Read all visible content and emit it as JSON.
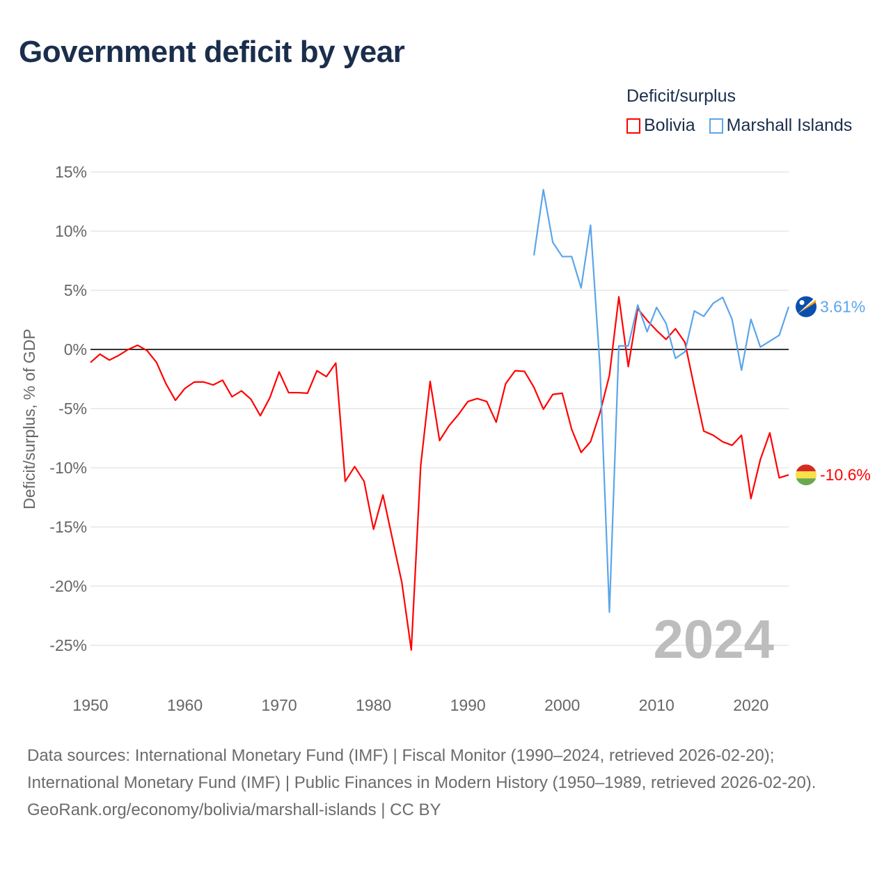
{
  "title": "Government deficit by year",
  "legend": {
    "title": "Deficit/surplus",
    "items": [
      {
        "label": "Bolivia",
        "color": "#ff0000"
      },
      {
        "label": "Marshall Islands",
        "color": "#5aa5ea"
      }
    ]
  },
  "year_watermark": "2024",
  "end_labels": {
    "bolivia": "-10.6%",
    "marshall": "3.61%"
  },
  "footer": {
    "sources": "Data sources: International Monetary Fund (IMF) | Fiscal Monitor (1990–2024, retrieved 2026-02-20); International Monetary Fund (IMF) | Public Finances in Modern History (1950–1989, retrieved 2026-02-20).",
    "credit": "GeoRank.org/economy/bolivia/marshall-islands | CC BY"
  },
  "chart_data": {
    "type": "line",
    "title": "Government deficit by year",
    "xlabel": "",
    "ylabel": "Deficit/surplus, % of GDP",
    "xlim": [
      1950,
      2024
    ],
    "ylim": [
      -25,
      15
    ],
    "x_ticks": [
      "1950",
      "1960",
      "1970",
      "1980",
      "1990",
      "2000",
      "2010",
      "2020"
    ],
    "y_ticks": [
      "15%",
      "10%",
      "5%",
      "0%",
      "-5%",
      "-10%",
      "-15%",
      "-20%",
      "-25%"
    ],
    "legend_position": "top-right",
    "grid": true,
    "series": [
      {
        "name": "Bolivia",
        "color": "#ff0000",
        "start_year": 1950,
        "values": [
          -1.1,
          -0.4,
          -0.9,
          -0.5,
          0.0,
          0.35,
          -0.1,
          -1.1,
          -2.9,
          -4.3,
          -3.3,
          -2.75,
          -2.75,
          -3.0,
          -2.6,
          -4.0,
          -3.5,
          -4.2,
          -5.6,
          -4.1,
          -1.9,
          -3.65,
          -3.65,
          -3.7,
          -1.8,
          -2.3,
          -1.15,
          -11.15,
          -9.9,
          -11.15,
          -15.2,
          -12.3,
          -16.0,
          -19.7,
          -25.4,
          -9.8,
          -2.7,
          -7.7,
          -6.45,
          -5.5,
          -4.4,
          -4.15,
          -4.4,
          -6.15,
          -2.9,
          -1.8,
          -1.85,
          -3.2,
          -5.05,
          -3.8,
          -3.7,
          -6.75,
          -8.7,
          -7.8,
          -5.35,
          -2.2,
          4.45,
          -1.45,
          3.45,
          2.45,
          1.6,
          0.85,
          1.75,
          0.6,
          -3.2,
          -6.9,
          -7.25,
          -7.8,
          -8.1,
          -7.25,
          -12.6,
          -9.3,
          -7.05,
          -10.85,
          -10.6
        ]
      },
      {
        "name": "Marshall Islands",
        "color": "#5aa5ea",
        "start_year": 1997,
        "values": [
          7.95,
          13.5,
          9.05,
          7.85,
          7.85,
          5.2,
          10.5,
          -1.5,
          -22.2,
          0.3,
          0.3,
          3.75,
          1.5,
          3.55,
          2.2,
          -0.75,
          -0.2,
          3.25,
          2.8,
          3.9,
          4.4,
          2.55,
          -1.75,
          2.55,
          0.2,
          0.7,
          1.2,
          3.61
        ]
      }
    ]
  }
}
